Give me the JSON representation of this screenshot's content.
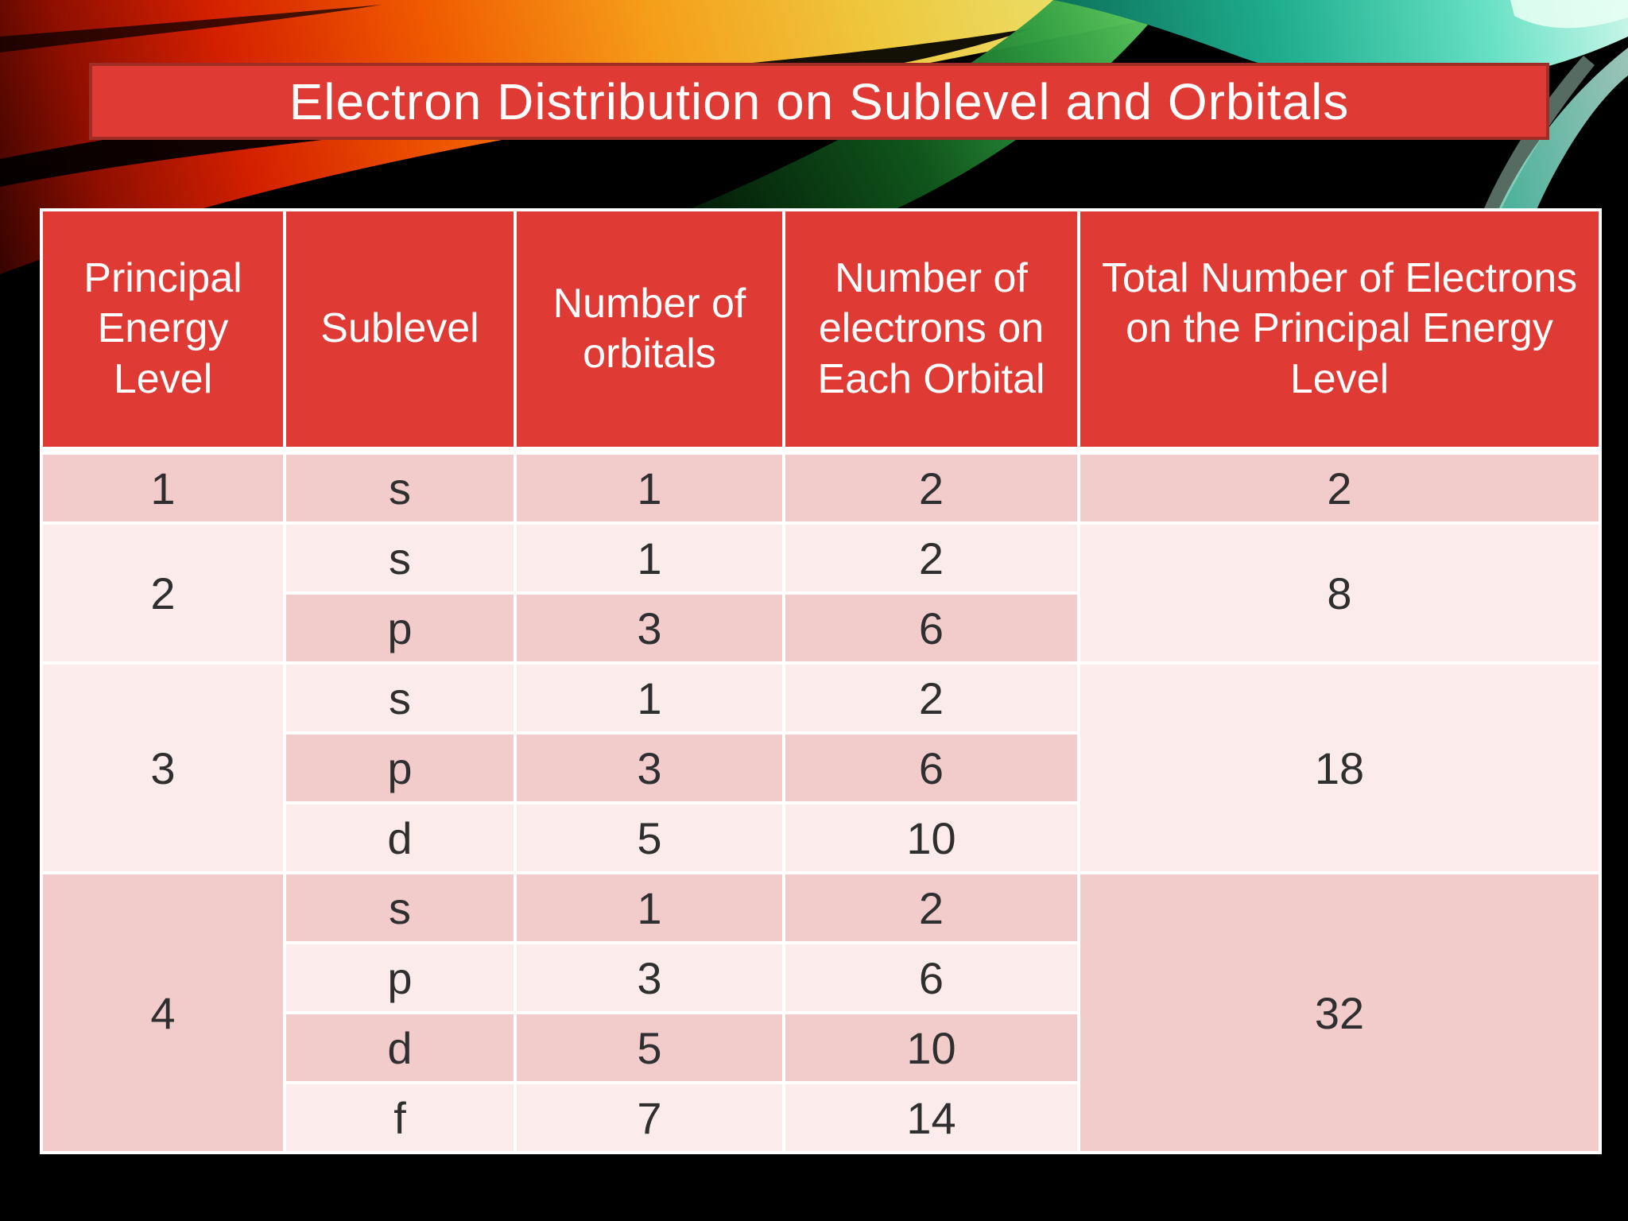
{
  "slide": {
    "title": "Electron Distribution on Sublevel and Orbitals"
  },
  "table": {
    "headers": [
      "Principal Energy Level",
      "Sublevel",
      "Number of orbitals",
      "Number of electrons on Each Orbital",
      "Total Number of Electrons on the Principal Energy Level"
    ],
    "groups": [
      {
        "level": "1",
        "total": "2",
        "sublevels": [
          {
            "sublevel": "s",
            "orbitals": "1",
            "electrons": "2"
          }
        ]
      },
      {
        "level": "2",
        "total": "8",
        "sublevels": [
          {
            "sublevel": "s",
            "orbitals": "1",
            "electrons": "2"
          },
          {
            "sublevel": "p",
            "orbitals": "3",
            "electrons": "6"
          }
        ]
      },
      {
        "level": "3",
        "total": "18",
        "sublevels": [
          {
            "sublevel": "s",
            "orbitals": "1",
            "electrons": "2"
          },
          {
            "sublevel": "p",
            "orbitals": "3",
            "electrons": "6"
          },
          {
            "sublevel": "d",
            "orbitals": "5",
            "electrons": "10"
          }
        ]
      },
      {
        "level": "4",
        "total": "32",
        "sublevels": [
          {
            "sublevel": "s",
            "orbitals": "1",
            "electrons": "2"
          },
          {
            "sublevel": "p",
            "orbitals": "3",
            "electrons": "6"
          },
          {
            "sublevel": "d",
            "orbitals": "5",
            "electrons": "10"
          },
          {
            "sublevel": "f",
            "orbitals": "7",
            "electrons": "14"
          }
        ]
      }
    ]
  },
  "colors": {
    "accent-red": "#e03a35",
    "banner-border": "#a12d27",
    "row-dark": "#f2cbcb",
    "row-light": "#fbebeb",
    "cell-text": "#2f2f2f",
    "header-text": "#ffffff"
  }
}
